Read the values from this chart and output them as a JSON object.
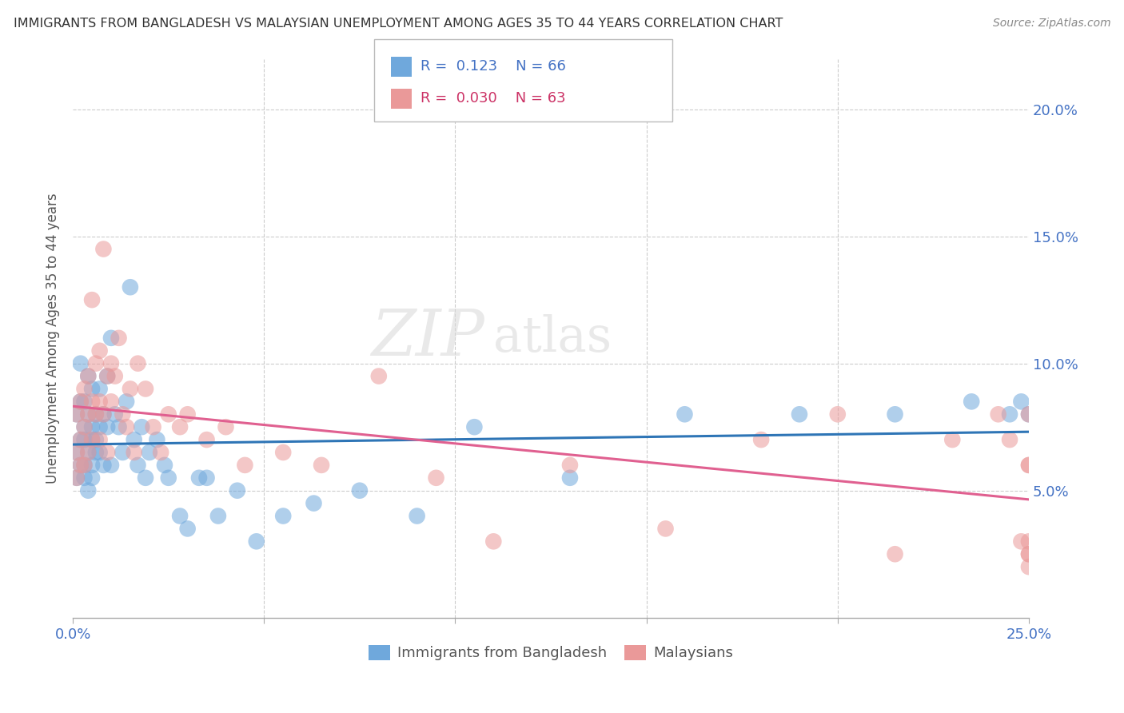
{
  "title": "IMMIGRANTS FROM BANGLADESH VS MALAYSIAN UNEMPLOYMENT AMONG AGES 35 TO 44 YEARS CORRELATION CHART",
  "source": "Source: ZipAtlas.com",
  "ylabel": "Unemployment Among Ages 35 to 44 years",
  "xlim": [
    0.0,
    0.25
  ],
  "ylim": [
    0.0,
    0.22
  ],
  "xticks": [
    0.0,
    0.05,
    0.1,
    0.15,
    0.2,
    0.25
  ],
  "yticks": [
    0.05,
    0.1,
    0.15,
    0.2
  ],
  "series1_color": "#6fa8dc",
  "series1_edge": "#6fa8dc",
  "series2_color": "#ea9999",
  "series2_edge": "#ea9999",
  "line1_color": "#2E75B6",
  "line2_color": "#E06090",
  "series1_label": "Immigrants from Bangladesh",
  "series2_label": "Malaysians",
  "watermark_text": "ZIPatlas",
  "series1_x": [
    0.001,
    0.001,
    0.001,
    0.002,
    0.002,
    0.002,
    0.002,
    0.003,
    0.003,
    0.003,
    0.003,
    0.003,
    0.004,
    0.004,
    0.004,
    0.004,
    0.005,
    0.005,
    0.005,
    0.005,
    0.005,
    0.006,
    0.006,
    0.006,
    0.007,
    0.007,
    0.007,
    0.008,
    0.008,
    0.009,
    0.009,
    0.01,
    0.01,
    0.011,
    0.012,
    0.013,
    0.014,
    0.015,
    0.016,
    0.017,
    0.018,
    0.019,
    0.02,
    0.022,
    0.024,
    0.025,
    0.028,
    0.03,
    0.033,
    0.035,
    0.038,
    0.043,
    0.048,
    0.055,
    0.063,
    0.075,
    0.09,
    0.105,
    0.13,
    0.16,
    0.19,
    0.215,
    0.235,
    0.245,
    0.248,
    0.25
  ],
  "series1_y": [
    0.065,
    0.08,
    0.055,
    0.07,
    0.06,
    0.085,
    0.1,
    0.06,
    0.075,
    0.055,
    0.07,
    0.085,
    0.05,
    0.065,
    0.08,
    0.095,
    0.06,
    0.075,
    0.055,
    0.09,
    0.07,
    0.065,
    0.08,
    0.07,
    0.075,
    0.09,
    0.065,
    0.08,
    0.06,
    0.075,
    0.095,
    0.11,
    0.06,
    0.08,
    0.075,
    0.065,
    0.085,
    0.13,
    0.07,
    0.06,
    0.075,
    0.055,
    0.065,
    0.07,
    0.06,
    0.055,
    0.04,
    0.035,
    0.055,
    0.055,
    0.04,
    0.05,
    0.03,
    0.04,
    0.045,
    0.05,
    0.04,
    0.075,
    0.055,
    0.08,
    0.08,
    0.08,
    0.085,
    0.08,
    0.085,
    0.08
  ],
  "series2_x": [
    0.001,
    0.001,
    0.001,
    0.002,
    0.002,
    0.002,
    0.003,
    0.003,
    0.003,
    0.004,
    0.004,
    0.004,
    0.005,
    0.005,
    0.005,
    0.006,
    0.006,
    0.007,
    0.007,
    0.007,
    0.008,
    0.008,
    0.009,
    0.009,
    0.01,
    0.01,
    0.011,
    0.012,
    0.013,
    0.014,
    0.015,
    0.016,
    0.017,
    0.019,
    0.021,
    0.023,
    0.025,
    0.028,
    0.03,
    0.035,
    0.04,
    0.045,
    0.055,
    0.065,
    0.08,
    0.095,
    0.11,
    0.13,
    0.155,
    0.18,
    0.2,
    0.215,
    0.23,
    0.242,
    0.245,
    0.248,
    0.25,
    0.25,
    0.25,
    0.25,
    0.25,
    0.25,
    0.25
  ],
  "series2_y": [
    0.065,
    0.08,
    0.055,
    0.07,
    0.085,
    0.06,
    0.09,
    0.075,
    0.06,
    0.065,
    0.08,
    0.095,
    0.07,
    0.125,
    0.085,
    0.08,
    0.1,
    0.07,
    0.085,
    0.105,
    0.08,
    0.145,
    0.065,
    0.095,
    0.1,
    0.085,
    0.095,
    0.11,
    0.08,
    0.075,
    0.09,
    0.065,
    0.1,
    0.09,
    0.075,
    0.065,
    0.08,
    0.075,
    0.08,
    0.07,
    0.075,
    0.06,
    0.065,
    0.06,
    0.095,
    0.055,
    0.03,
    0.06,
    0.035,
    0.07,
    0.08,
    0.025,
    0.07,
    0.08,
    0.07,
    0.03,
    0.025,
    0.06,
    0.08,
    0.06,
    0.03,
    0.025,
    0.02
  ]
}
